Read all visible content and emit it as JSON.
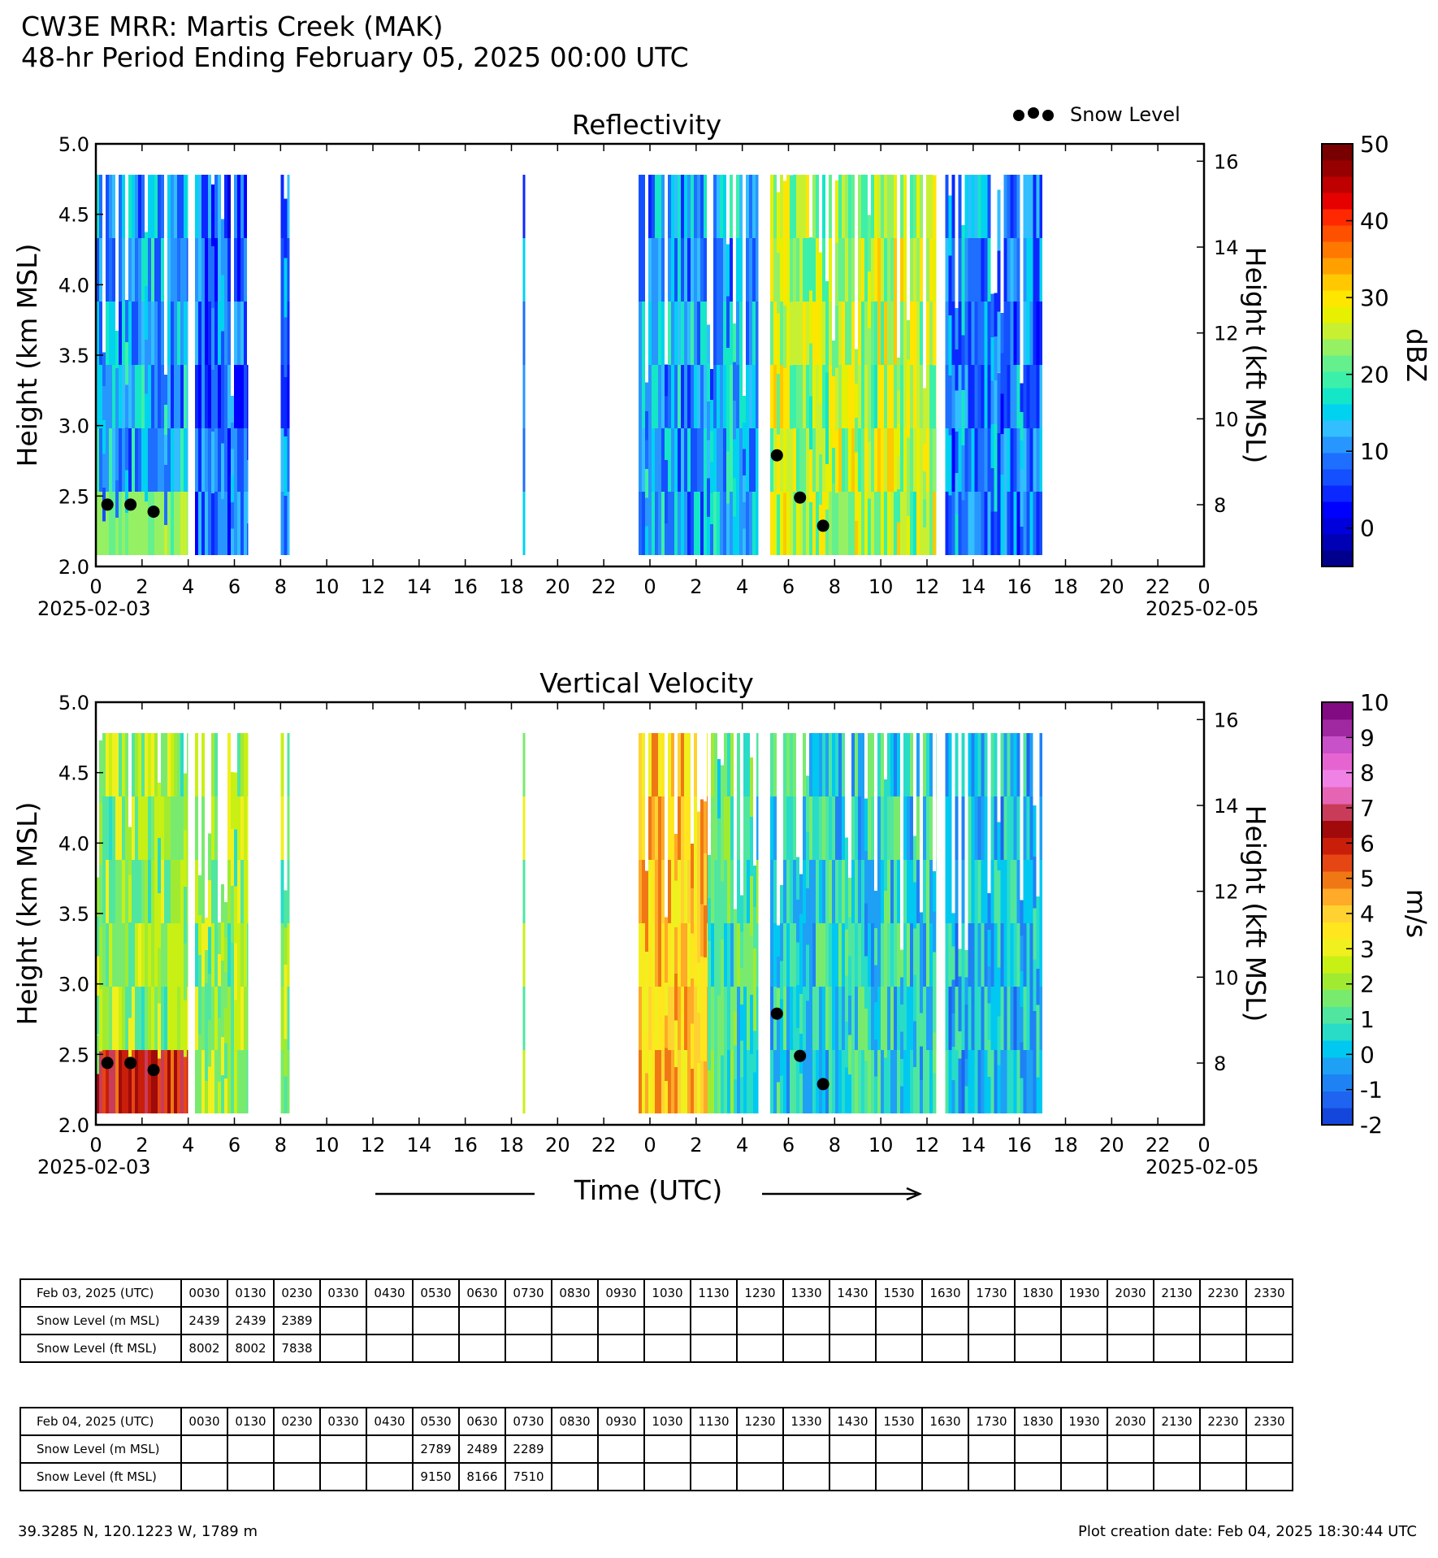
{
  "page": {
    "title_line1": "CW3E MRR: Martis Creek (MAK)",
    "title_line2": "48-hr Period Ending February 05, 2025 00:00 UTC",
    "legend_label": "Snow Level",
    "time_axis_label": "Time (UTC)",
    "footer_location": "39.3285 N, 120.1223 W, 1789 m",
    "footer_creation": "Plot creation date: Feb 04, 2025 18:30:44 UTC"
  },
  "chart_data": [
    {
      "type": "heatmap",
      "title": "Reflectivity",
      "ylabel": "Height (km MSL)",
      "ylabel_right": "Height (kft MSL)",
      "ylim": [
        2.0,
        5.0
      ],
      "yticks": [
        "2.0",
        "2.5",
        "3.0",
        "3.5",
        "4.0",
        "4.5",
        "5.0"
      ],
      "right_ticks": [
        "8",
        "10",
        "12",
        "14",
        "16"
      ],
      "xlim_hours": [
        0,
        48
      ],
      "xtick_labels": [
        "0",
        "2",
        "4",
        "6",
        "8",
        "10",
        "12",
        "14",
        "16",
        "18",
        "20",
        "22",
        "0",
        "2",
        "4",
        "6",
        "8",
        "10",
        "12",
        "14",
        "16",
        "18",
        "20",
        "22",
        "0"
      ],
      "date_start": "2025-02-03",
      "date_end": "2025-02-05",
      "colorbar": {
        "label": "dBZ",
        "vmin": -5,
        "vmax": 50,
        "tick_labels": [
          "0",
          "10",
          "20",
          "30",
          "40",
          "50"
        ],
        "tick_values": [
          0,
          10,
          20,
          30,
          40,
          50
        ],
        "colors": [
          "#00008c",
          "#0000b4",
          "#0000dc",
          "#0000ff",
          "#0a28ff",
          "#1450ff",
          "#1e6eff",
          "#2896ff",
          "#32beff",
          "#00d2f0",
          "#14e6c8",
          "#3cf0aa",
          "#64f08c",
          "#96f064",
          "#c8f032",
          "#e6f000",
          "#ffe600",
          "#ffc800",
          "#ffa000",
          "#ff7800",
          "#ff5000",
          "#ff2800",
          "#e60000",
          "#be0000",
          "#960000",
          "#780000"
        ]
      },
      "data_blocks_hours": [
        {
          "start": 0.0,
          "end": 4.0,
          "top_km": 4.78,
          "value": 12,
          "note_low": 22
        },
        {
          "start": 4.3,
          "end": 6.6,
          "top_km": 4.78,
          "value": 8
        },
        {
          "start": 8.0,
          "end": 8.4,
          "top_km": 4.78,
          "value": 10
        },
        {
          "start": 18.5,
          "end": 18.6,
          "top_km": 4.78,
          "value": 12
        },
        {
          "start": 23.5,
          "end": 28.7,
          "top_km": 4.78,
          "value": 12
        },
        {
          "start": 29.2,
          "end": 36.4,
          "top_km": 4.78,
          "value": 25
        },
        {
          "start": 36.8,
          "end": 41.0,
          "top_km": 4.78,
          "value": 10
        }
      ],
      "snow_level_points": [
        {
          "hour": 0.5,
          "km": 2.439
        },
        {
          "hour": 1.5,
          "km": 2.439
        },
        {
          "hour": 2.5,
          "km": 2.389
        },
        {
          "hour": 29.5,
          "km": 2.789
        },
        {
          "hour": 30.5,
          "km": 2.489
        },
        {
          "hour": 31.5,
          "km": 2.289
        }
      ]
    },
    {
      "type": "heatmap",
      "title": "Vertical Velocity",
      "ylabel": "Height (km MSL)",
      "ylabel_right": "Height (kft MSL)",
      "ylim": [
        2.0,
        5.0
      ],
      "yticks": [
        "2.0",
        "2.5",
        "3.0",
        "3.5",
        "4.0",
        "4.5",
        "5.0"
      ],
      "right_ticks": [
        "8",
        "10",
        "12",
        "14",
        "16"
      ],
      "xlim_hours": [
        0,
        48
      ],
      "xtick_labels": [
        "0",
        "2",
        "4",
        "6",
        "8",
        "10",
        "12",
        "14",
        "16",
        "18",
        "20",
        "22",
        "0",
        "2",
        "4",
        "6",
        "8",
        "10",
        "12",
        "14",
        "16",
        "18",
        "20",
        "22",
        "0"
      ],
      "date_start": "2025-02-03",
      "date_end": "2025-02-05",
      "colorbar": {
        "label": "m/s",
        "vmin": -2,
        "vmax": 10,
        "tick_labels": [
          "-2",
          "-1",
          "0",
          "1",
          "2",
          "3",
          "4",
          "5",
          "6",
          "7",
          "8",
          "9",
          "10"
        ],
        "tick_values": [
          -2,
          -1,
          0,
          1,
          2,
          3,
          4,
          5,
          6,
          7,
          8,
          9,
          10
        ],
        "colors": [
          "#1446dc",
          "#1e64f0",
          "#1e82f5",
          "#1ea0f5",
          "#00c8f0",
          "#28dcc8",
          "#50e6a0",
          "#78eb6e",
          "#a0eb32",
          "#c8f014",
          "#f0f01e",
          "#ffe61e",
          "#ffd232",
          "#ffaa28",
          "#f07814",
          "#e64614",
          "#c81e0a",
          "#a00a0a",
          "#c83c5a",
          "#e664b4",
          "#f082e6",
          "#e664d2",
          "#c850c8",
          "#a028a0",
          "#820a82"
        ]
      },
      "data_blocks_hours": [
        {
          "start": 0.0,
          "end": 4.0,
          "top_km": 4.78,
          "value": 2,
          "note_low": 6
        },
        {
          "start": 4.3,
          "end": 6.6,
          "top_km": 4.78,
          "value": 2
        },
        {
          "start": 8.0,
          "end": 8.4,
          "top_km": 4.78,
          "value": 2
        },
        {
          "start": 18.5,
          "end": 18.6,
          "top_km": 4.78,
          "value": 2
        },
        {
          "start": 23.5,
          "end": 26.5,
          "top_km": 4.78,
          "value": 4
        },
        {
          "start": 26.5,
          "end": 28.7,
          "top_km": 4.78,
          "value": 1
        },
        {
          "start": 29.2,
          "end": 36.4,
          "top_km": 4.78,
          "value": 0.5
        },
        {
          "start": 36.8,
          "end": 41.0,
          "top_km": 4.78,
          "value": 0
        }
      ],
      "snow_level_points": [
        {
          "hour": 0.5,
          "km": 2.439
        },
        {
          "hour": 1.5,
          "km": 2.439
        },
        {
          "hour": 2.5,
          "km": 2.389
        },
        {
          "hour": 29.5,
          "km": 2.789
        },
        {
          "hour": 30.5,
          "km": 2.489
        },
        {
          "hour": 31.5,
          "km": 2.289
        }
      ]
    }
  ],
  "tables": [
    {
      "header": "Feb 03, 2025 (UTC)",
      "times": [
        "0030",
        "0130",
        "0230",
        "0330",
        "0430",
        "0530",
        "0630",
        "0730",
        "0830",
        "0930",
        "1030",
        "1130",
        "1230",
        "1330",
        "1430",
        "1530",
        "1630",
        "1730",
        "1830",
        "1930",
        "2030",
        "2130",
        "2230",
        "2330"
      ],
      "rows": [
        {
          "label": "Snow Level (m MSL)",
          "values": [
            "2439",
            "2439",
            "2389",
            "",
            "",
            "",
            "",
            "",
            "",
            "",
            "",
            "",
            "",
            "",
            "",
            "",
            "",
            "",
            "",
            "",
            "",
            "",
            "",
            ""
          ]
        },
        {
          "label": "Snow Level (ft MSL)",
          "values": [
            "8002",
            "8002",
            "7838",
            "",
            "",
            "",
            "",
            "",
            "",
            "",
            "",
            "",
            "",
            "",
            "",
            "",
            "",
            "",
            "",
            "",
            "",
            "",
            "",
            ""
          ]
        }
      ]
    },
    {
      "header": "Feb 04, 2025 (UTC)",
      "times": [
        "0030",
        "0130",
        "0230",
        "0330",
        "0430",
        "0530",
        "0630",
        "0730",
        "0830",
        "0930",
        "1030",
        "1130",
        "1230",
        "1330",
        "1430",
        "1530",
        "1630",
        "1730",
        "1830",
        "1930",
        "2030",
        "2130",
        "2230",
        "2330"
      ],
      "rows": [
        {
          "label": "Snow Level (m MSL)",
          "values": [
            "",
            "",
            "",
            "",
            "",
            "2789",
            "2489",
            "2289",
            "",
            "",
            "",
            "",
            "",
            "",
            "",
            "",
            "",
            "",
            "",
            "",
            "",
            "",
            "",
            ""
          ]
        },
        {
          "label": "Snow Level (ft MSL)",
          "values": [
            "",
            "",
            "",
            "",
            "",
            "9150",
            "8166",
            "7510",
            "",
            "",
            "",
            "",
            "",
            "",
            "",
            "",
            "",
            "",
            "",
            "",
            "",
            "",
            "",
            ""
          ]
        }
      ]
    }
  ]
}
